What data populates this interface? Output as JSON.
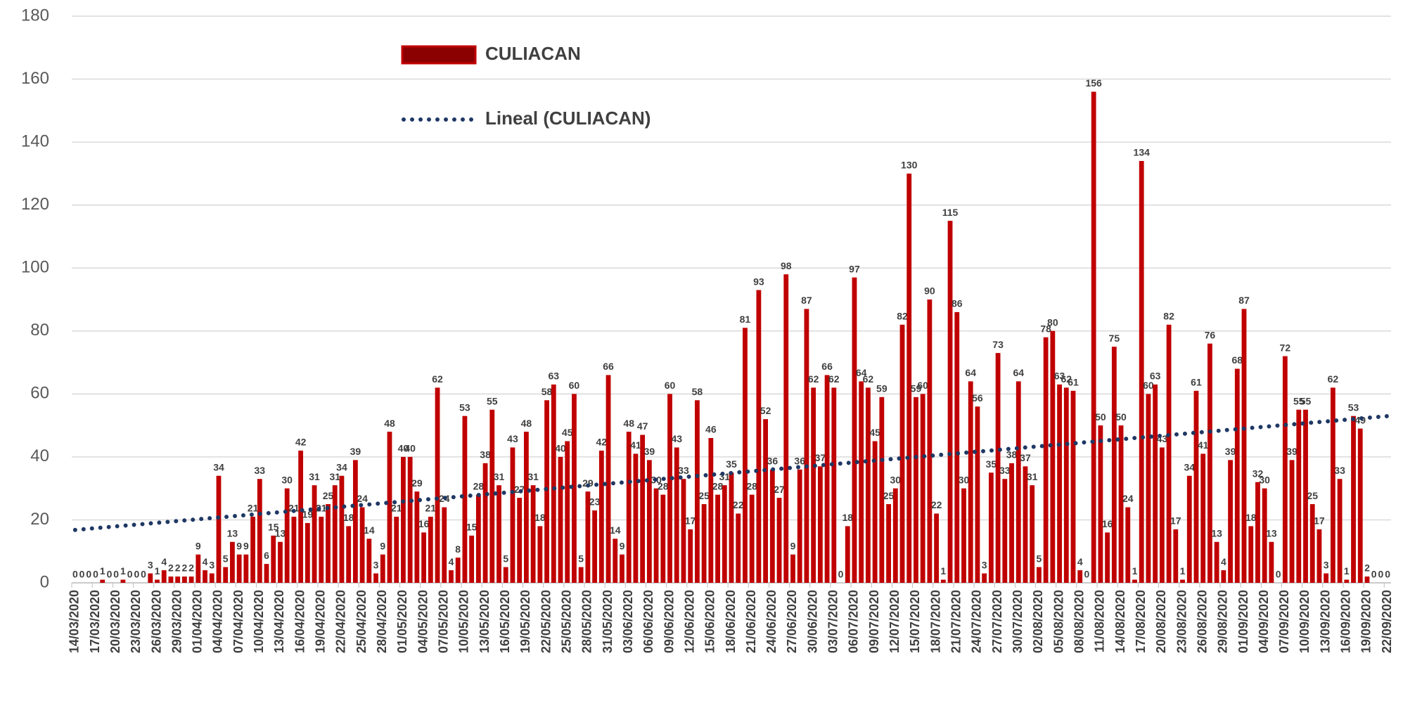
{
  "chart_data": {
    "type": "bar",
    "series": [
      {
        "name": "CULIACAN",
        "color": "#c00000",
        "values": [
          0,
          0,
          0,
          0,
          1,
          0,
          0,
          1,
          0,
          0,
          0,
          3,
          1,
          4,
          2,
          2,
          2,
          2,
          9,
          4,
          3,
          34,
          5,
          13,
          9,
          9,
          21,
          33,
          6,
          15,
          13,
          30,
          21,
          42,
          19,
          31,
          21,
          25,
          31,
          34,
          18,
          39,
          24,
          14,
          3,
          9,
          48,
          21,
          40,
          40,
          29,
          16,
          21,
          62,
          24,
          4,
          8,
          53,
          15,
          28,
          38,
          55,
          31,
          5,
          43,
          27,
          48,
          31,
          18,
          58,
          63,
          40,
          45,
          60,
          5,
          29,
          23,
          42,
          66,
          14,
          9,
          48,
          41,
          47,
          39,
          30,
          28,
          60,
          43,
          33,
          17,
          58,
          25,
          46,
          28,
          31,
          35,
          22,
          81,
          28,
          93,
          52,
          36,
          27,
          98,
          9,
          36,
          87,
          62,
          37,
          66,
          62,
          0,
          18,
          97,
          64,
          62,
          45,
          59,
          25,
          30,
          82,
          130,
          59,
          60,
          90,
          22,
          1,
          115,
          86,
          30,
          64,
          56,
          3,
          35,
          73,
          33,
          38,
          64,
          37,
          31,
          5,
          78,
          80,
          63,
          62,
          61,
          4,
          0,
          156,
          50,
          16,
          75,
          50,
          24,
          1,
          134,
          60,
          63,
          43,
          82,
          17,
          1,
          34,
          61,
          41,
          76,
          13,
          4,
          39,
          68,
          87,
          18,
          32,
          30,
          13,
          0,
          72,
          39,
          55,
          55,
          25,
          17,
          3,
          62,
          33,
          1,
          53,
          49,
          2,
          0,
          0,
          0
        ]
      }
    ],
    "trendline": {
      "name": "Lineal (CULIACAN)",
      "color": "#1f3864"
    },
    "categories": [
      "14/03/2020",
      null,
      null,
      "17/03/2020",
      null,
      null,
      "20/03/2020",
      null,
      null,
      "23/03/2020",
      null,
      null,
      "26/03/2020",
      null,
      null,
      "29/03/2020",
      null,
      null,
      "01/04/2020",
      null,
      null,
      "04/04/2020",
      null,
      null,
      "07/04/2020",
      null,
      null,
      "10/04/2020",
      null,
      null,
      "13/04/2020",
      null,
      null,
      "16/04/2020",
      null,
      null,
      "19/04/2020",
      null,
      null,
      "22/04/2020",
      null,
      null,
      "25/04/2020",
      null,
      null,
      "28/04/2020",
      null,
      null,
      "01/05/2020",
      null,
      null,
      "04/05/2020",
      null,
      null,
      "07/05/2020",
      null,
      null,
      "10/05/2020",
      null,
      null,
      "13/05/2020",
      null,
      null,
      "16/05/2020",
      null,
      null,
      "19/05/2020",
      null,
      null,
      "22/05/2020",
      null,
      null,
      "25/05/2020",
      null,
      null,
      "28/05/2020",
      null,
      null,
      "31/05/2020",
      null,
      null,
      "03/06/2020",
      null,
      null,
      "06/06/2020",
      null,
      null,
      "09/06/2020",
      null,
      null,
      "12/06/2020",
      null,
      null,
      "15/06/2020",
      null,
      null,
      "18/06/2020",
      null,
      null,
      "21/06/2020",
      null,
      null,
      "24/06/2020",
      null,
      null,
      "27/06/2020",
      null,
      null,
      "30/06/2020",
      null,
      null,
      "03/07/2020",
      null,
      null,
      "06/07/2020",
      null,
      null,
      "09/07/2020",
      null,
      null,
      "12/07/2020",
      null,
      null,
      "15/07/2020",
      null,
      null,
      "18/07/2020",
      null,
      null,
      "21/07/2020",
      null,
      null,
      "24/07/2020",
      null,
      null,
      "27/07/2020",
      null,
      null,
      "30/07/2020",
      null,
      null,
      "02/08/2020",
      null,
      null,
      "05/08/2020",
      null,
      null,
      "08/08/2020",
      null,
      null,
      "11/08/2020",
      null,
      null,
      "14/08/2020",
      null,
      null,
      "17/08/2020",
      null,
      null,
      "20/08/2020",
      null,
      null,
      "23/08/2020",
      null,
      null,
      "26/08/2020",
      null,
      null,
      "29/08/2020",
      null,
      null,
      "01/09/2020",
      null,
      null,
      "04/09/2020",
      null,
      null,
      "07/09/2020",
      null,
      null,
      "10/09/2020",
      null,
      null,
      "13/09/2020",
      null,
      null,
      "16/09/2020",
      null,
      null,
      "19/09/2020",
      null,
      null,
      "22/09/2020"
    ],
    "ylim": [
      0,
      180
    ],
    "yticks": [
      0,
      20,
      40,
      60,
      80,
      100,
      120,
      140,
      160,
      180
    ],
    "grid": true
  }
}
